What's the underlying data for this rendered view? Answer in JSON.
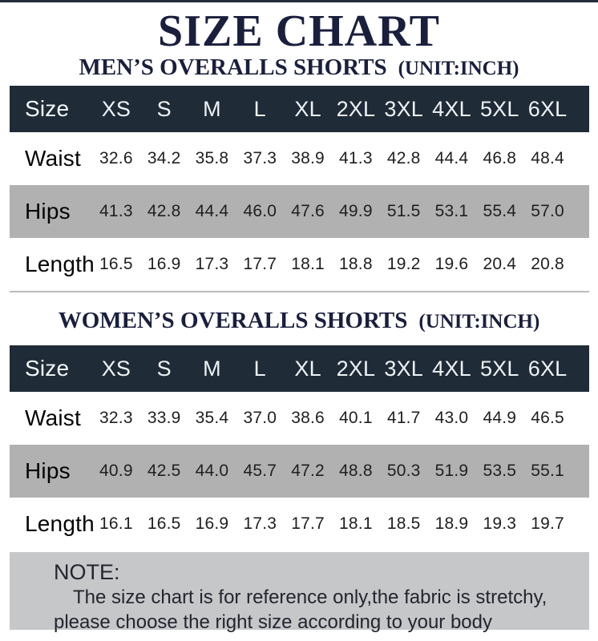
{
  "page": {
    "title": "SIZE CHART"
  },
  "size_labels": [
    "Size",
    "XS",
    "S",
    "M",
    "L",
    "XL",
    "2XL",
    "3XL",
    "4XL",
    "5XL",
    "6XL"
  ],
  "men": {
    "subtitle": "MEN’S OVERALLS SHORTS",
    "unit": "(UNIT:INCH)",
    "rows": [
      {
        "label": "Waist",
        "values": [
          "32.6",
          "34.2",
          "35.8",
          "37.3",
          "38.9",
          "41.3",
          "42.8",
          "44.4",
          "46.8",
          "48.4"
        ]
      },
      {
        "label": "Hips",
        "values": [
          "41.3",
          "42.8",
          "44.4",
          "46.0",
          "47.6",
          "49.9",
          "51.5",
          "53.1",
          "55.4",
          "57.0"
        ]
      },
      {
        "label": "Length",
        "values": [
          "16.5",
          "16.9",
          "17.3",
          "17.7",
          "18.1",
          "18.8",
          "19.2",
          "19.6",
          "20.4",
          "20.8"
        ]
      }
    ]
  },
  "women": {
    "subtitle": "WOMEN’S OVERALLS SHORTS",
    "unit": "(UNIT:INCH)",
    "rows": [
      {
        "label": "Waist",
        "values": [
          "32.3",
          "33.9",
          "35.4",
          "37.0",
          "38.6",
          "40.1",
          "41.7",
          "43.0",
          "44.9",
          "46.5"
        ]
      },
      {
        "label": "Hips",
        "values": [
          "40.9",
          "42.5",
          "44.0",
          "45.7",
          "47.2",
          "48.8",
          "50.3",
          "51.9",
          "53.5",
          "55.1"
        ]
      },
      {
        "label": "Length",
        "values": [
          "16.1",
          "16.5",
          "16.9",
          "17.3",
          "17.7",
          "18.1",
          "18.5",
          "18.9",
          "19.3",
          "19.7"
        ]
      }
    ]
  },
  "note": {
    "heading": "NOTE:",
    "line1": "The size chart is for reference only,the fabric is stretchy,",
    "line2": "please choose the right size according to your body"
  },
  "colors": {
    "title_navy": "#1a1f3d",
    "header_bg": "#1f2b37",
    "header_text": "#eef2f5",
    "gray_row": "#b1b1b2",
    "note_bg": "#c6c7c9",
    "top_rule": "#232e3a"
  }
}
